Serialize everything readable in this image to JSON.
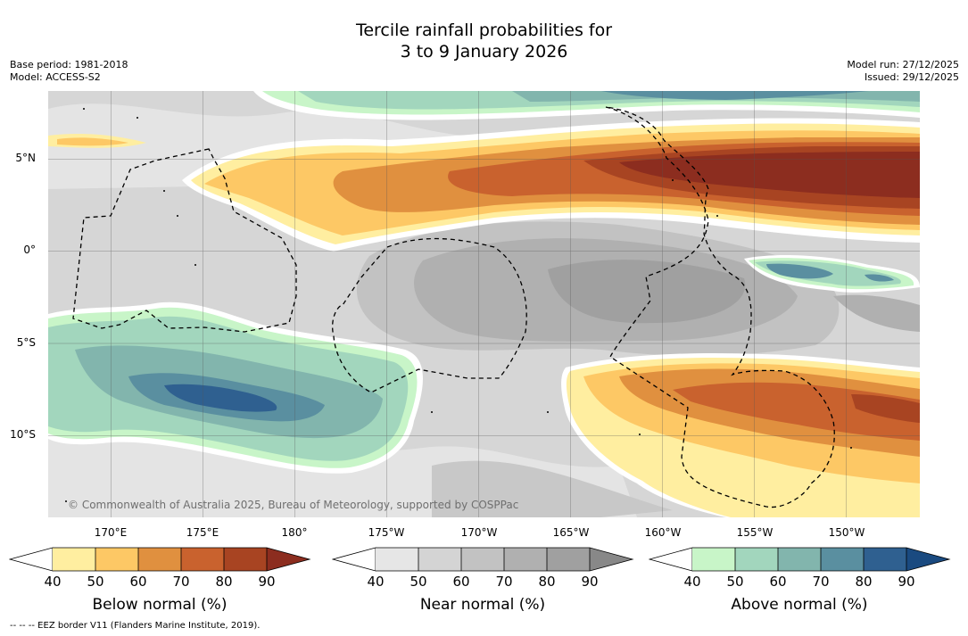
{
  "title": {
    "line1": "Tercile rainfall probabilities for",
    "line2": "3 to 9 January 2026"
  },
  "meta": {
    "base_period": "Base period: 1981-2018",
    "model": "Model: ACCESS-S2",
    "model_run": "Model run: 27/12/2025",
    "issued": "Issued: 29/12/2025"
  },
  "axes": {
    "lat_labels": [
      "5°N",
      "0°",
      "5°S",
      "10°S"
    ],
    "lon_labels": [
      "170°E",
      "175°E",
      "180°",
      "175°W",
      "170°W",
      "165°W",
      "160°W",
      "155°W",
      "150°W"
    ]
  },
  "credit": "© Commonwealth of Australia 2025, Bureau of Meteorology, supported by COSPPac",
  "colorbars": [
    {
      "label": "Below normal (%)",
      "ticks": [
        "40",
        "50",
        "60",
        "70",
        "80",
        "90"
      ],
      "colors": [
        "#ffeea0",
        "#fdc865",
        "#e0903f",
        "#c9622e",
        "#a84422",
        "#8c2d1f"
      ]
    },
    {
      "label": "Near normal (%)",
      "ticks": [
        "40",
        "50",
        "60",
        "70",
        "80",
        "90"
      ],
      "colors": [
        "#e6e6e6",
        "#d4d4d4",
        "#c2c2c2",
        "#b0b0b0",
        "#a0a0a0",
        "#888888"
      ]
    },
    {
      "label": "Above normal (%)",
      "ticks": [
        "40",
        "50",
        "60",
        "70",
        "80",
        "90"
      ],
      "colors": [
        "#c8f5c8",
        "#a2d6bd",
        "#82b5ad",
        "#5a8fa0",
        "#2f6090",
        "#1a4a80"
      ]
    }
  ],
  "footnote": "--  --  -- EEZ border V11 (Flanders Marine Institute, 2019)."
}
